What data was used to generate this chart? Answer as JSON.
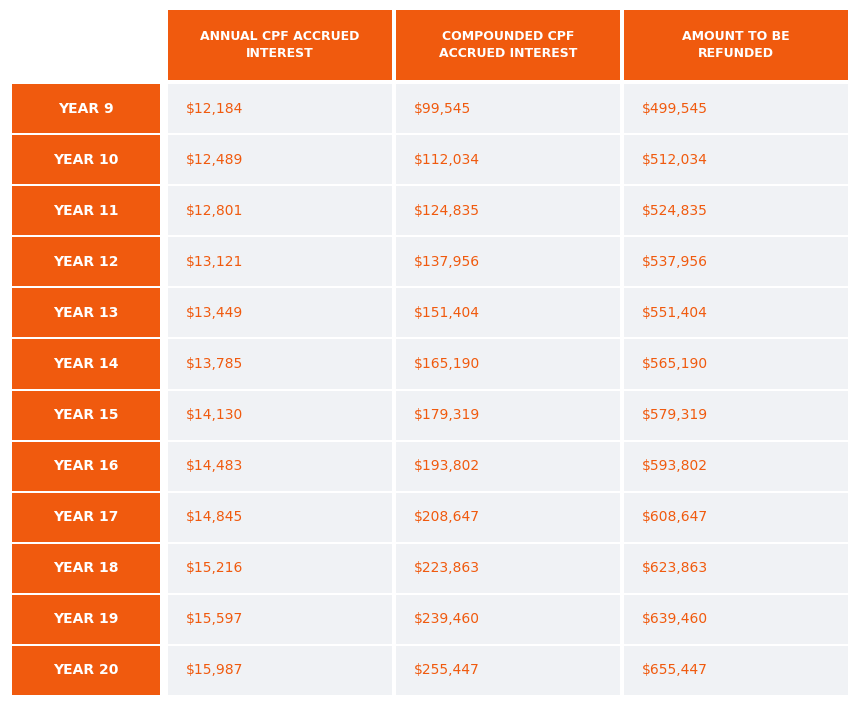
{
  "rows": [
    [
      "YEAR 9",
      "$12,184",
      "$99,545",
      "$499,545"
    ],
    [
      "YEAR 10",
      "$12,489",
      "$112,034",
      "$512,034"
    ],
    [
      "YEAR 11",
      "$12,801",
      "$124,835",
      "$524,835"
    ],
    [
      "YEAR 12",
      "$13,121",
      "$137,956",
      "$537,956"
    ],
    [
      "YEAR 13",
      "$13,449",
      "$151,404",
      "$551,404"
    ],
    [
      "YEAR 14",
      "$13,785",
      "$165,190",
      "$565,190"
    ],
    [
      "YEAR 15",
      "$14,130",
      "$179,319",
      "$579,319"
    ],
    [
      "YEAR 16",
      "$14,483",
      "$193,802",
      "$593,802"
    ],
    [
      "YEAR 17",
      "$14,845",
      "$208,647",
      "$608,647"
    ],
    [
      "YEAR 18",
      "$15,216",
      "$223,863",
      "$623,863"
    ],
    [
      "YEAR 19",
      "$15,597",
      "$239,460",
      "$639,460"
    ],
    [
      "YEAR 20",
      "$15,987",
      "$255,447",
      "$655,447"
    ]
  ],
  "col_headers": [
    "ANNUAL CPF ACCRUED\nINTEREST",
    "COMPOUNDED CPF\nACCRUED INTEREST",
    "AMOUNT TO BE\nREFUNDED"
  ],
  "orange": "#F05A0E",
  "white": "#FFFFFF",
  "row_bg": "#F0F2F5",
  "data_color": "#F05A0E",
  "fig_bg": "#FFFFFF",
  "border_white": "#FFFFFF",
  "fig_w": 8.6,
  "fig_h": 7.05,
  "dpi": 100
}
